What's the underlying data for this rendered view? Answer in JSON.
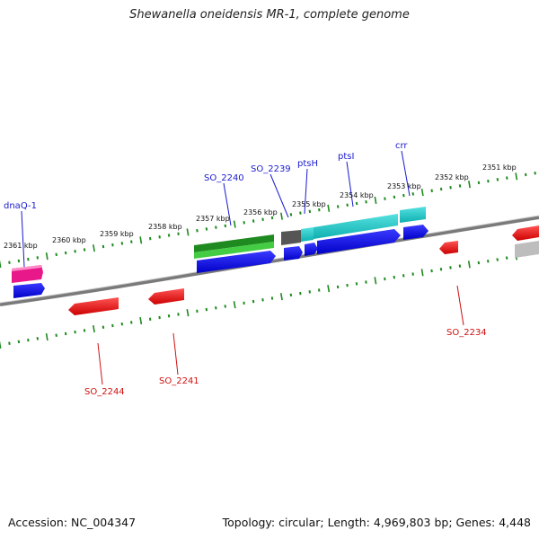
{
  "title": "Shewanella oneidensis MR-1, complete genome",
  "accession": "Accession: NC_004347",
  "topology": "Topology: circular; Length: 4,969,803 bp; Genes: 4,448",
  "ruler_labels": [
    "2361 kbp",
    "2360 kbp",
    "2359 kbp",
    "2358 kbp",
    "2357 kbp",
    "2356 kbp",
    "2355 kbp",
    "2354 kbp",
    "2353 kbp",
    "2352 kbp",
    "2351 kbp"
  ],
  "genes_top": [
    "dnaQ-1",
    "SO_2240",
    "SO_2239",
    "ptsH",
    "ptsI",
    "crr"
  ],
  "genes_bottom": [
    "SO_2244",
    "SO_2241",
    "SO_2234"
  ],
  "colors": {
    "forward_label": "#1a1ad0",
    "reverse_label": "#d01010",
    "tick": "#1f8a1f",
    "backbone": "#808080"
  }
}
